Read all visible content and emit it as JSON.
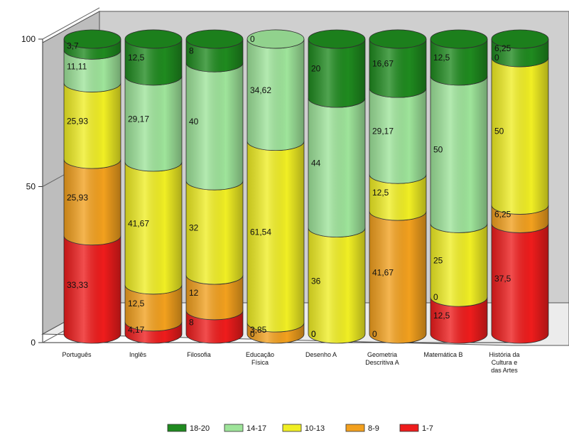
{
  "chart_data": {
    "type": "bar",
    "stacked": true,
    "style": "3d-cylinder",
    "ylim": [
      0,
      100
    ],
    "yticks": [
      "0",
      "50",
      "100"
    ],
    "categories": [
      "Português",
      "Inglês",
      "Filosofia",
      "Educação Física",
      "Desenho A",
      "Geometria Descritiva A",
      "Matemática B",
      "História da Cultura e das Artes"
    ],
    "category_lines": [
      [
        "Português"
      ],
      [
        "Inglês"
      ],
      [
        "Filosofia"
      ],
      [
        "Educação",
        "Física"
      ],
      [
        "Desenho A"
      ],
      [
        "Geometria",
        "Descritiva A"
      ],
      [
        "Matemática B"
      ],
      [
        "História da",
        "Cultura e",
        "das Artes"
      ]
    ],
    "series": [
      {
        "name": "1-7",
        "color": "#ee1c1c",
        "labels": [
          "33,33",
          "4,17",
          "8",
          "0",
          "0",
          "0",
          "12,5",
          "37,5"
        ],
        "values": [
          33.33,
          4.17,
          8,
          0,
          0,
          0,
          12.5,
          37.5
        ]
      },
      {
        "name": "8-9",
        "color": "#f2a01e",
        "labels": [
          "25,93",
          "12,5",
          "12",
          "3,85",
          "0",
          "41,67",
          "0",
          "6,25"
        ],
        "values": [
          25.93,
          12.5,
          12,
          3.85,
          0,
          41.67,
          0,
          6.25
        ]
      },
      {
        "name": "10-13",
        "color": "#f0ee24",
        "labels": [
          "25,93",
          "41,67",
          "32",
          "61,54",
          "36",
          "12,5",
          "25",
          "50"
        ],
        "values": [
          25.93,
          41.67,
          32,
          61.54,
          36,
          12.5,
          25,
          50
        ]
      },
      {
        "name": "14-17",
        "color": "#9ee49a",
        "labels": [
          "11,11",
          "29,17",
          "40",
          "34,62",
          "44",
          "29,17",
          "50",
          "0"
        ],
        "values": [
          11.11,
          29.17,
          40,
          34.62,
          44,
          29.17,
          50,
          0
        ]
      },
      {
        "name": "18-20",
        "color": "#1f8a1f",
        "labels": [
          "3,7",
          "12,5",
          "8",
          "0",
          "20",
          "16,67",
          "12,5",
          "6,25"
        ],
        "values": [
          3.7,
          12.5,
          8,
          0,
          20,
          16.67,
          12.5,
          6.25
        ]
      }
    ],
    "legend": [
      "18-20",
      "14-17",
      "10-13",
      "8-9",
      "1-7"
    ],
    "legend_position": "bottom",
    "grid": false
  }
}
